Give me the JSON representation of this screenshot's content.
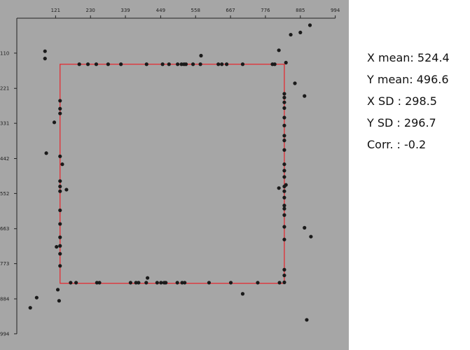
{
  "chart_data": {
    "type": "scatter",
    "title": "",
    "xlabel": "",
    "ylabel": "",
    "xlim": [
      0,
      994
    ],
    "ylim": [
      0,
      994
    ],
    "y_inverted": true,
    "x_ticks": [
      121,
      230,
      339,
      449,
      558,
      667,
      776,
      885,
      994
    ],
    "y_ticks": [
      110,
      221,
      331,
      442,
      552,
      663,
      773,
      884,
      994
    ],
    "rectangle": {
      "x0": 135,
      "y0": 145,
      "x1": 835,
      "y1": 835
    },
    "points": [
      [
        88,
        104
      ],
      [
        88,
        127
      ],
      [
        117,
        328
      ],
      [
        92,
        425
      ],
      [
        124,
        720
      ],
      [
        42,
        912
      ],
      [
        62,
        880
      ],
      [
        128,
        855
      ],
      [
        132,
        890
      ],
      [
        135,
        260
      ],
      [
        135,
        285
      ],
      [
        135,
        300
      ],
      [
        135,
        435
      ],
      [
        142,
        460
      ],
      [
        135,
        513
      ],
      [
        135,
        530
      ],
      [
        135,
        545
      ],
      [
        155,
        540
      ],
      [
        135,
        605
      ],
      [
        135,
        648
      ],
      [
        135,
        690
      ],
      [
        135,
        717
      ],
      [
        135,
        742
      ],
      [
        135,
        780
      ],
      [
        168,
        833
      ],
      [
        185,
        833
      ],
      [
        250,
        833
      ],
      [
        258,
        833
      ],
      [
        355,
        833
      ],
      [
        372,
        833
      ],
      [
        380,
        833
      ],
      [
        404,
        833
      ],
      [
        408,
        818
      ],
      [
        438,
        833
      ],
      [
        450,
        833
      ],
      [
        460,
        833
      ],
      [
        465,
        833
      ],
      [
        501,
        833
      ],
      [
        516,
        833
      ],
      [
        524,
        833
      ],
      [
        600,
        833
      ],
      [
        668,
        833
      ],
      [
        752,
        833
      ],
      [
        820,
        833
      ],
      [
        705,
        868
      ],
      [
        195,
        145
      ],
      [
        222,
        145
      ],
      [
        248,
        145
      ],
      [
        285,
        145
      ],
      [
        325,
        145
      ],
      [
        405,
        145
      ],
      [
        455,
        145
      ],
      [
        475,
        145
      ],
      [
        502,
        145
      ],
      [
        514,
        145
      ],
      [
        522,
        145
      ],
      [
        528,
        145
      ],
      [
        550,
        145
      ],
      [
        573,
        145
      ],
      [
        575,
        118
      ],
      [
        629,
        145
      ],
      [
        640,
        145
      ],
      [
        655,
        145
      ],
      [
        705,
        145
      ],
      [
        798,
        145
      ],
      [
        805,
        145
      ],
      [
        818,
        101
      ],
      [
        840,
        140
      ],
      [
        835,
        238
      ],
      [
        835,
        250
      ],
      [
        835,
        265
      ],
      [
        835,
        283
      ],
      [
        835,
        313
      ],
      [
        835,
        338
      ],
      [
        835,
        370
      ],
      [
        835,
        385
      ],
      [
        835,
        415
      ],
      [
        835,
        460
      ],
      [
        835,
        480
      ],
      [
        835,
        500
      ],
      [
        835,
        530
      ],
      [
        840,
        525
      ],
      [
        835,
        545
      ],
      [
        835,
        565
      ],
      [
        835,
        590
      ],
      [
        835,
        600
      ],
      [
        835,
        620
      ],
      [
        835,
        657
      ],
      [
        835,
        697
      ],
      [
        835,
        792
      ],
      [
        835,
        810
      ],
      [
        835,
        832
      ],
      [
        818,
        535
      ],
      [
        855,
        52
      ],
      [
        885,
        45
      ],
      [
        915,
        22
      ],
      [
        868,
        205
      ],
      [
        898,
        245
      ],
      [
        898,
        660
      ],
      [
        918,
        688
      ],
      [
        905,
        950
      ]
    ]
  },
  "stats": [
    {
      "label": "X mean",
      "value": "524.4",
      "text": "X mean: 524.4"
    },
    {
      "label": "Y mean",
      "value": "496.6",
      "text": "Y mean: 496.6"
    },
    {
      "label": "X SD",
      "value": "298.5",
      "text": "X SD   : 298.5"
    },
    {
      "label": "Y SD",
      "value": "296.7",
      "text": "Y SD   : 296.7"
    },
    {
      "label": "Corr.",
      "value": "-0.2",
      "text": "Corr. : -0.2"
    }
  ],
  "colors": {
    "panel_bg": "#a6a6a6",
    "point": "#1a1a1a",
    "rectangle": "#e8232a",
    "axis": "#222222"
  }
}
